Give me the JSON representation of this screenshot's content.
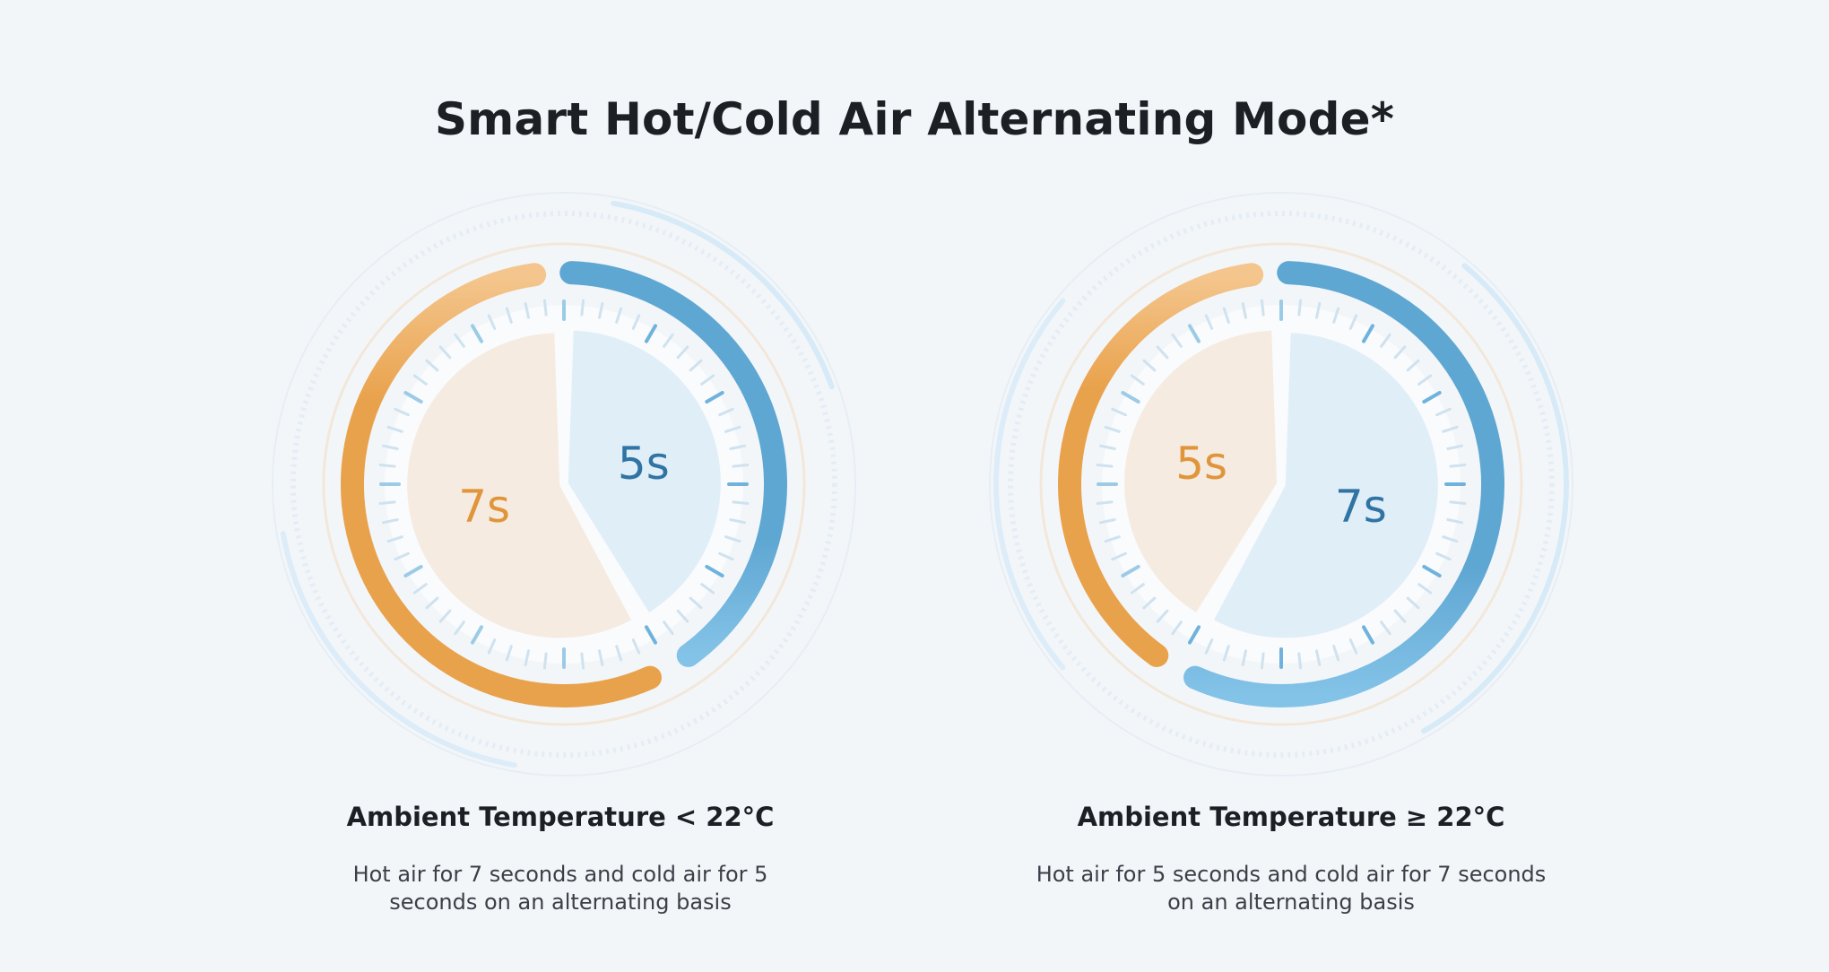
{
  "title": "Smart Hot/Cold Air Alternating Mode*",
  "colors": {
    "hot": "#e9a24c",
    "hot_light": "#f5ccp0",
    "cold": "#5fa7d3",
    "cold_light": "#84c3e8",
    "hot_fill": "#f5ebe0",
    "cold_fill": "#e0eef8",
    "hot_text": "#e0953b",
    "cold_text": "#2f74a3"
  },
  "panels": [
    {
      "heading": "Ambient Temperature < 22°C",
      "description_line1": "Hot air for 7 seconds and cold air for 5",
      "description_line2": "seconds on an alternating basis",
      "hot_label": "7s",
      "cold_label": "5s",
      "hot_seconds": 7,
      "cold_seconds": 5
    },
    {
      "heading": "Ambient Temperature ≥ 22°C",
      "description_line1": "Hot air for 5 seconds and cold air for 7 seconds",
      "description_line2": "on an alternating basis",
      "hot_label": "5s",
      "cold_label": "7s",
      "hot_seconds": 5,
      "cold_seconds": 7
    }
  ]
}
